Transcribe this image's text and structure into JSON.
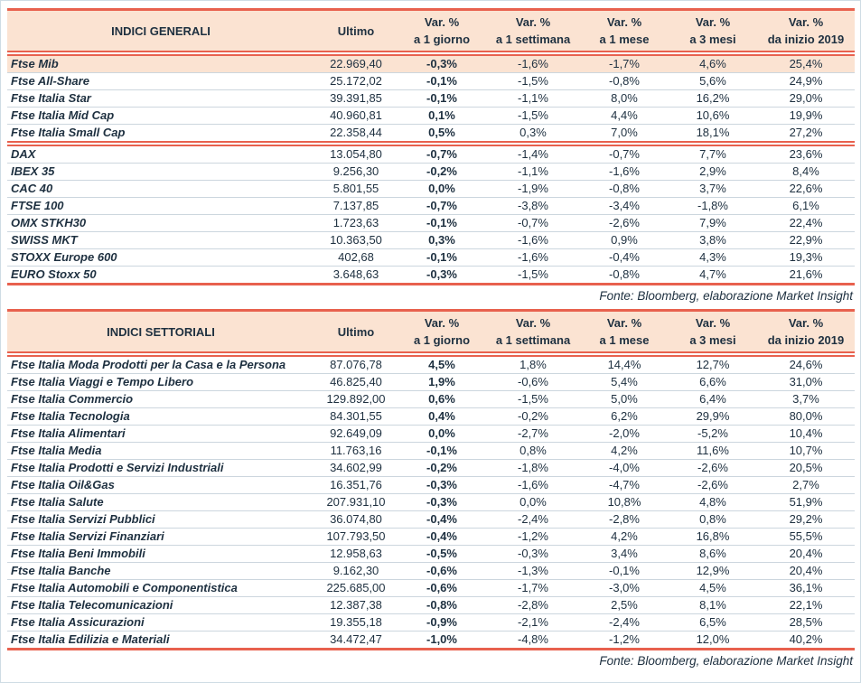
{
  "source_note": "Fonte: Bloomberg, elaborazione Market Insight",
  "colors": {
    "orange": "#E8614E",
    "peach": "#FBE3D2",
    "navy": "#1E3040",
    "divider": "#CCD6DE",
    "frame": "#CFDCE4"
  },
  "columns": [
    {
      "key": "ultimo",
      "top": "Ultimo",
      "bottom": ""
    },
    {
      "key": "d1",
      "top": "Var. %",
      "bottom": "a 1 giorno"
    },
    {
      "key": "w1",
      "top": "Var. %",
      "bottom": "a 1 settimana"
    },
    {
      "key": "m1",
      "top": "Var. %",
      "bottom": "a 1 mese"
    },
    {
      "key": "m3",
      "top": "Var. %",
      "bottom": "a 3 mesi"
    },
    {
      "key": "ytd",
      "top": "Var. %",
      "bottom": "da inizio 2019"
    }
  ],
  "tables": [
    {
      "title": "INDICI GENERALI",
      "slug": "indici-generali",
      "groups": [
        {
          "rows": [
            {
              "name": "Ftse Mib",
              "ultimo": "22.969,40",
              "d1": "-0,3%",
              "w1": "-1,6%",
              "m1": "-1,7%",
              "m3": "4,6%",
              "ytd": "25,4%",
              "highlight": true
            },
            {
              "name": "Ftse All-Share",
              "ultimo": "25.172,02",
              "d1": "-0,1%",
              "w1": "-1,5%",
              "m1": "-0,8%",
              "m3": "5,6%",
              "ytd": "24,9%"
            },
            {
              "name": "Ftse Italia Star",
              "ultimo": "39.391,85",
              "d1": "-0,1%",
              "w1": "-1,1%",
              "m1": "8,0%",
              "m3": "16,2%",
              "ytd": "29,0%"
            },
            {
              "name": "Ftse Italia Mid Cap",
              "ultimo": "40.960,81",
              "d1": "0,1%",
              "w1": "-1,5%",
              "m1": "4,4%",
              "m3": "10,6%",
              "ytd": "19,9%"
            },
            {
              "name": "Ftse Italia Small Cap",
              "ultimo": "22.358,44",
              "d1": "0,5%",
              "w1": "0,3%",
              "m1": "7,0%",
              "m3": "18,1%",
              "ytd": "27,2%"
            }
          ]
        },
        {
          "rows": [
            {
              "name": "DAX",
              "ultimo": "13.054,80",
              "d1": "-0,7%",
              "w1": "-1,4%",
              "m1": "-0,7%",
              "m3": "7,7%",
              "ytd": "23,6%"
            },
            {
              "name": "IBEX 35",
              "ultimo": "9.256,30",
              "d1": "-0,2%",
              "w1": "-1,1%",
              "m1": "-1,6%",
              "m3": "2,9%",
              "ytd": "8,4%"
            },
            {
              "name": "CAC 40",
              "ultimo": "5.801,55",
              "d1": "0,0%",
              "w1": "-1,9%",
              "m1": "-0,8%",
              "m3": "3,7%",
              "ytd": "22,6%"
            },
            {
              "name": "FTSE 100",
              "ultimo": "7.137,85",
              "d1": "-0,7%",
              "w1": "-3,8%",
              "m1": "-3,4%",
              "m3": "-1,8%",
              "ytd": "6,1%"
            },
            {
              "name": "OMX STKH30",
              "ultimo": "1.723,63",
              "d1": "-0,1%",
              "w1": "-0,7%",
              "m1": "-2,6%",
              "m3": "7,9%",
              "ytd": "22,4%"
            },
            {
              "name": "SWISS MKT",
              "ultimo": "10.363,50",
              "d1": "0,3%",
              "w1": "-1,6%",
              "m1": "0,9%",
              "m3": "3,8%",
              "ytd": "22,9%"
            },
            {
              "name": "STOXX Europe 600",
              "ultimo": "402,68",
              "d1": "-0,1%",
              "w1": "-1,6%",
              "m1": "-0,4%",
              "m3": "4,3%",
              "ytd": "19,3%"
            },
            {
              "name": "EURO Stoxx 50",
              "ultimo": "3.648,63",
              "d1": "-0,3%",
              "w1": "-1,5%",
              "m1": "-0,8%",
              "m3": "4,7%",
              "ytd": "21,6%"
            }
          ]
        }
      ]
    },
    {
      "title": "INDICI SETTORIALI",
      "slug": "indici-settoriali",
      "groups": [
        {
          "rows": [
            {
              "name": "Ftse Italia Moda Prodotti per la Casa e la Persona",
              "ultimo": "87.076,78",
              "d1": "4,5%",
              "w1": "1,8%",
              "m1": "14,4%",
              "m3": "12,7%",
              "ytd": "24,6%"
            },
            {
              "name": "Ftse Italia Viaggi e Tempo Libero",
              "ultimo": "46.825,40",
              "d1": "1,9%",
              "w1": "-0,6%",
              "m1": "5,4%",
              "m3": "6,6%",
              "ytd": "31,0%"
            },
            {
              "name": "Ftse Italia Commercio",
              "ultimo": "129.892,00",
              "d1": "0,6%",
              "w1": "-1,5%",
              "m1": "5,0%",
              "m3": "6,4%",
              "ytd": "3,7%"
            },
            {
              "name": "Ftse Italia Tecnologia",
              "ultimo": "84.301,55",
              "d1": "0,4%",
              "w1": "-0,2%",
              "m1": "6,2%",
              "m3": "29,9%",
              "ytd": "80,0%"
            },
            {
              "name": "Ftse Italia Alimentari",
              "ultimo": "92.649,09",
              "d1": "0,0%",
              "w1": "-2,7%",
              "m1": "-2,0%",
              "m3": "-5,2%",
              "ytd": "10,4%"
            },
            {
              "name": "Ftse Italia Media",
              "ultimo": "11.763,16",
              "d1": "-0,1%",
              "w1": "0,8%",
              "m1": "4,2%",
              "m3": "11,6%",
              "ytd": "10,7%"
            },
            {
              "name": "Ftse Italia Prodotti e Servizi Industriali",
              "ultimo": "34.602,99",
              "d1": "-0,2%",
              "w1": "-1,8%",
              "m1": "-4,0%",
              "m3": "-2,6%",
              "ytd": "20,5%"
            },
            {
              "name": "Ftse Italia Oil&Gas",
              "ultimo": "16.351,76",
              "d1": "-0,3%",
              "w1": "-1,6%",
              "m1": "-4,7%",
              "m3": "-2,6%",
              "ytd": "2,7%"
            },
            {
              "name": "Ftse Italia Salute",
              "ultimo": "207.931,10",
              "d1": "-0,3%",
              "w1": "0,0%",
              "m1": "10,8%",
              "m3": "4,8%",
              "ytd": "51,9%"
            },
            {
              "name": "Ftse Italia Servizi Pubblici",
              "ultimo": "36.074,80",
              "d1": "-0,4%",
              "w1": "-2,4%",
              "m1": "-2,8%",
              "m3": "0,8%",
              "ytd": "29,2%"
            },
            {
              "name": "Ftse Italia Servizi Finanziari",
              "ultimo": "107.793,50",
              "d1": "-0,4%",
              "w1": "-1,2%",
              "m1": "4,2%",
              "m3": "16,8%",
              "ytd": "55,5%"
            },
            {
              "name": "Ftse Italia Beni Immobili",
              "ultimo": "12.958,63",
              "d1": "-0,5%",
              "w1": "-0,3%",
              "m1": "3,4%",
              "m3": "8,6%",
              "ytd": "20,4%"
            },
            {
              "name": "Ftse Italia Banche",
              "ultimo": "9.162,30",
              "d1": "-0,6%",
              "w1": "-1,3%",
              "m1": "-0,1%",
              "m3": "12,9%",
              "ytd": "20,4%"
            },
            {
              "name": "Ftse Italia Automobili e Componentistica",
              "ultimo": "225.685,00",
              "d1": "-0,6%",
              "w1": "-1,7%",
              "m1": "-3,0%",
              "m3": "4,5%",
              "ytd": "36,1%"
            },
            {
              "name": "Ftse Italia Telecomunicazioni",
              "ultimo": "12.387,38",
              "d1": "-0,8%",
              "w1": "-2,8%",
              "m1": "2,5%",
              "m3": "8,1%",
              "ytd": "22,1%"
            },
            {
              "name": "Ftse Italia Assicurazioni",
              "ultimo": "19.355,18",
              "d1": "-0,9%",
              "w1": "-2,1%",
              "m1": "-2,4%",
              "m3": "6,5%",
              "ytd": "28,5%"
            },
            {
              "name": "Ftse Italia Edilizia e Materiali",
              "ultimo": "34.472,47",
              "d1": "-1,0%",
              "w1": "-4,8%",
              "m1": "-1,2%",
              "m3": "12,0%",
              "ytd": "40,2%"
            }
          ]
        }
      ]
    }
  ]
}
